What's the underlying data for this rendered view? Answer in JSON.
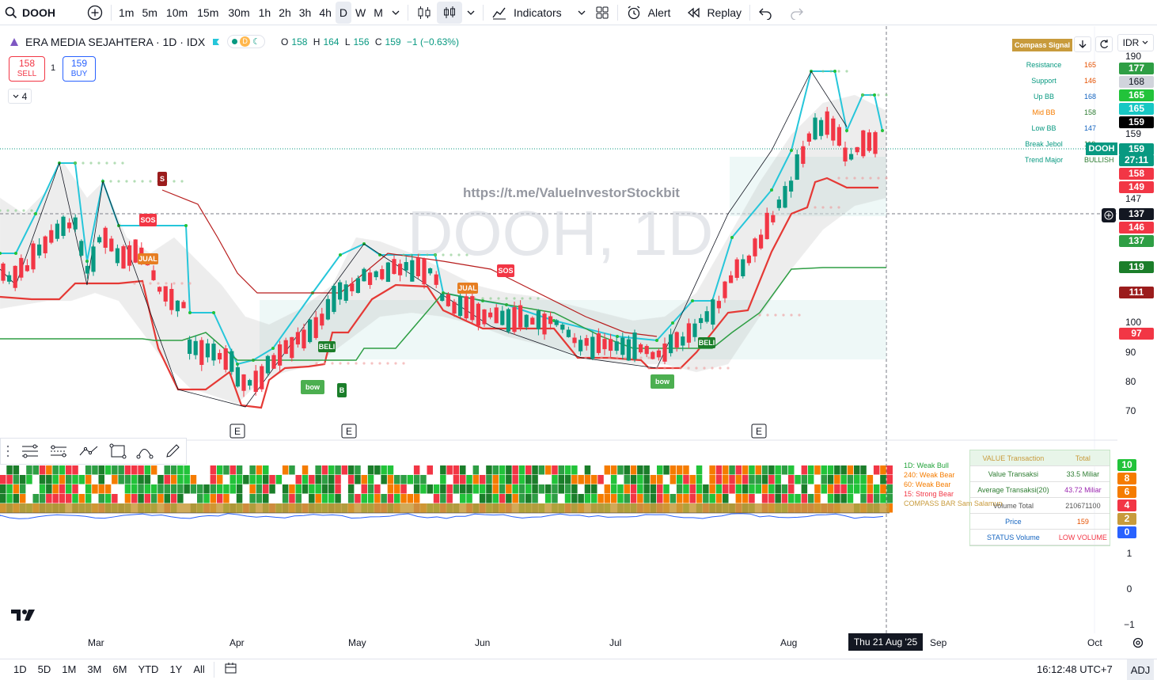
{
  "toolbar": {
    "symbol": "DOOH",
    "intervals": [
      "1m",
      "5m",
      "10m",
      "15m",
      "30m",
      "1h",
      "2h",
      "3h",
      "4h",
      "D",
      "W",
      "M"
    ],
    "active_interval": "D",
    "indicators_label": "Indicators",
    "alert_label": "Alert",
    "replay_label": "Replay"
  },
  "legend": {
    "title": "ERA MEDIA SEJAHTERA · 1D · IDX",
    "open_label": "O",
    "open": "158",
    "high_label": "H",
    "high": "164",
    "low_label": "L",
    "low": "156",
    "close_label": "C",
    "close": "159",
    "change": "−1 (−0.63%)",
    "badge_d": "D"
  },
  "trade": {
    "sell_price": "158",
    "sell_label": "SELL",
    "spread": "1",
    "buy_price": "159",
    "buy_label": "BUY",
    "indicator_count": "4"
  },
  "watermark": {
    "url": "https://t.me/ValueInvestorStockbit",
    "text": "DOOH, 1D"
  },
  "compass": {
    "title": "Compass Signal",
    "currency": "IDR",
    "rows": [
      {
        "k": "Resistance",
        "v": "165",
        "kc": "#089981",
        "vc": "#e65100"
      },
      {
        "k": "Support",
        "v": "146",
        "kc": "#089981",
        "vc": "#e65100"
      },
      {
        "k": "Up BB",
        "v": "168",
        "kc": "#089981",
        "vc": "#1565c0"
      },
      {
        "k": "Mid BB",
        "v": "158",
        "kc": "#f57c00",
        "vc": "#2e7d32"
      },
      {
        "k": "Low BB",
        "v": "147",
        "kc": "#089981",
        "vc": "#1565c0"
      },
      {
        "k": "Break Jebol",
        "v": "119",
        "kc": "#089981",
        "vc": "#2e7d32"
      },
      {
        "k": "Trend Major",
        "v": "BULLISH",
        "kc": "#089981",
        "vc": "#2e7d32"
      }
    ]
  },
  "price_axis": {
    "labels": [
      {
        "t": "190",
        "type": "plain"
      },
      {
        "t": "177",
        "type": "box",
        "bg": "#2e9e44"
      },
      {
        "t": "168",
        "type": "box",
        "bg": "#d1d4dc",
        "fg": "#131722"
      },
      {
        "t": "165",
        "type": "box",
        "bg": "#22c33a"
      },
      {
        "t": "165",
        "type": "box",
        "bg": "#17c8c4"
      },
      {
        "t": "159",
        "type": "box",
        "bg": "#000000"
      },
      {
        "t": "159",
        "type": "plain"
      },
      {
        "t": "159",
        "type": "box",
        "bg": "#089981"
      },
      {
        "t": "27:11",
        "type": "box",
        "bg": "#089981"
      },
      {
        "t": "158",
        "type": "box",
        "bg": "#f23645"
      },
      {
        "t": "149",
        "type": "box",
        "bg": "#f23645"
      },
      {
        "t": "147",
        "type": "plain"
      },
      {
        "t": "137",
        "type": "box",
        "bg": "#131722"
      },
      {
        "t": "146",
        "type": "box",
        "bg": "#f23645"
      },
      {
        "t": "137",
        "type": "box",
        "bg": "#2e9e44"
      },
      {
        "t": "119",
        "type": "box",
        "bg": "#1b7e2a"
      },
      {
        "t": "111",
        "type": "box",
        "bg": "#9b1c1c"
      },
      {
        "t": "100",
        "type": "plain"
      },
      {
        "t": "97",
        "type": "box",
        "bg": "#f23645"
      },
      {
        "t": "90",
        "type": "plain"
      },
      {
        "t": "80",
        "type": "plain"
      },
      {
        "t": "70",
        "type": "plain"
      }
    ],
    "symbol_tag": "DOOH",
    "osc_labels": [
      {
        "t": "10",
        "bg": "#22c33a"
      },
      {
        "t": "8",
        "bg": "#f57c00"
      },
      {
        "t": "6",
        "bg": "#f57c00"
      },
      {
        "t": "4",
        "bg": "#f23645"
      },
      {
        "t": "2",
        "bg": "#c89b3c"
      },
      {
        "t": "0",
        "bg": "#2962ff"
      }
    ],
    "lower_ticks": [
      "1",
      "0",
      "−1"
    ]
  },
  "compass_bar": {
    "lines": [
      {
        "t": "1D: Weak Bull",
        "c": "#22a33a"
      },
      {
        "t": "240: Weak Bear",
        "c": "#f57c00"
      },
      {
        "t": "60: Weak Bear",
        "c": "#f57c00"
      },
      {
        "t": "15: Strong Bear",
        "c": "#f23645"
      },
      {
        "t": "COMPASS BAR Sam Salamun",
        "c": "#c89b3c"
      }
    ]
  },
  "value_table": {
    "header_k": "VALUE Transaction",
    "header_v": "Total",
    "rows": [
      {
        "k": "Value Transaksi",
        "v": "33.5 Miliar",
        "kc": "#2e7d32",
        "vc": "#2e7d32"
      },
      {
        "k": "Average Transaksi(20)",
        "v": "43.72 Miliar",
        "kc": "#2e7d32",
        "vc": "#9c27b0"
      },
      {
        "k": "Volume Total",
        "v": "210671100",
        "kc": "#555",
        "vc": "#555"
      },
      {
        "k": "Price",
        "v": "159",
        "kc": "#1565c0",
        "vc": "#e65100"
      },
      {
        "k": "STATUS Volume",
        "v": "LOW VOLUME",
        "kc": "#1565c0",
        "vc": "#f23645"
      }
    ]
  },
  "time_axis": {
    "labels": [
      "Mar",
      "Apr",
      "May",
      "Jun",
      "Jul",
      "Aug",
      "Sep",
      "Oct"
    ],
    "cursor_date": "Thu 21 Aug '25"
  },
  "markers": {
    "sos": "SOS",
    "jual": "JUAL",
    "beli": "BELI",
    "bow": "bow",
    "b": "B",
    "s": "S",
    "e": "E"
  },
  "bottombar": {
    "ranges": [
      "1D",
      "5D",
      "1M",
      "3M",
      "6M",
      "YTD",
      "1Y",
      "All"
    ],
    "clock": "16:12:48 UTC+7",
    "adj": "ADJ"
  },
  "colors": {
    "up": "#089981",
    "down": "#f23645",
    "accent": "#2962ff"
  }
}
